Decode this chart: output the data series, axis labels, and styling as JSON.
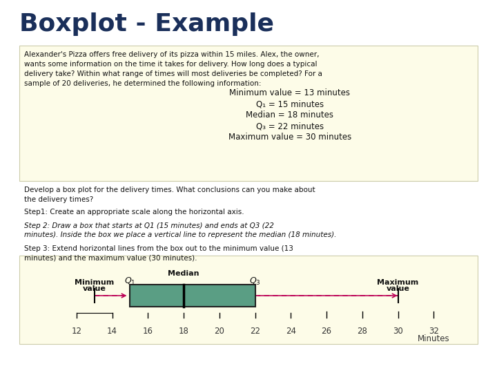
{
  "title": "Boxplot - Example",
  "title_color": "#1a2f5a",
  "title_fontsize": 26,
  "outer_background": "#ffffff",
  "cream_background": "#fdfce8",
  "cream_border": "#ccccaa",
  "problem_lines": [
    "Alexander's Pizza offers free delivery of its pizza within 15 miles. Alex, the owner,",
    "wants some information on the time it takes for delivery. How long does a typical",
    "delivery take? Within what range of times will most deliveries be completed? For a",
    "sample of 20 deliveries, he determined the following information:"
  ],
  "stats_lines": [
    "Minimum value = 13 minutes",
    "Q₁ = 15 minutes",
    "Median = 18 minutes",
    "Q₃ = 22 minutes",
    "Maximum value = 30 minutes"
  ],
  "develop_lines": [
    "Develop a box plot for the delivery times. What conclusions can you make about",
    "the delivery times?"
  ],
  "step1": "Step1: Create an appropriate scale along the horizontal axis.",
  "step2_lines": [
    "Step 2: Draw a box that starts at Q1 (15 minutes) and ends at Q3 (22",
    "minutes). Inside the box we place a vertical line to represent the median (18 minutes)."
  ],
  "step3_lines": [
    "Step 3: Extend horizontal lines from the box out to the minimum value (13",
    "minutes) and the maximum value (30 minutes)."
  ],
  "min_val": 13,
  "q1": 15,
  "median": 18,
  "q3": 22,
  "max_val": 30,
  "axis_data_min": 11,
  "axis_data_max": 34,
  "tick_positions": [
    12,
    14,
    16,
    18,
    20,
    22,
    24,
    26,
    28,
    30,
    32
  ],
  "box_color": "#5a9e84",
  "whisker_color": "#bb0055",
  "text_color": "#111111",
  "font_size_body": 7.5,
  "font_size_stats": 8.5,
  "font_size_step": 7.5
}
